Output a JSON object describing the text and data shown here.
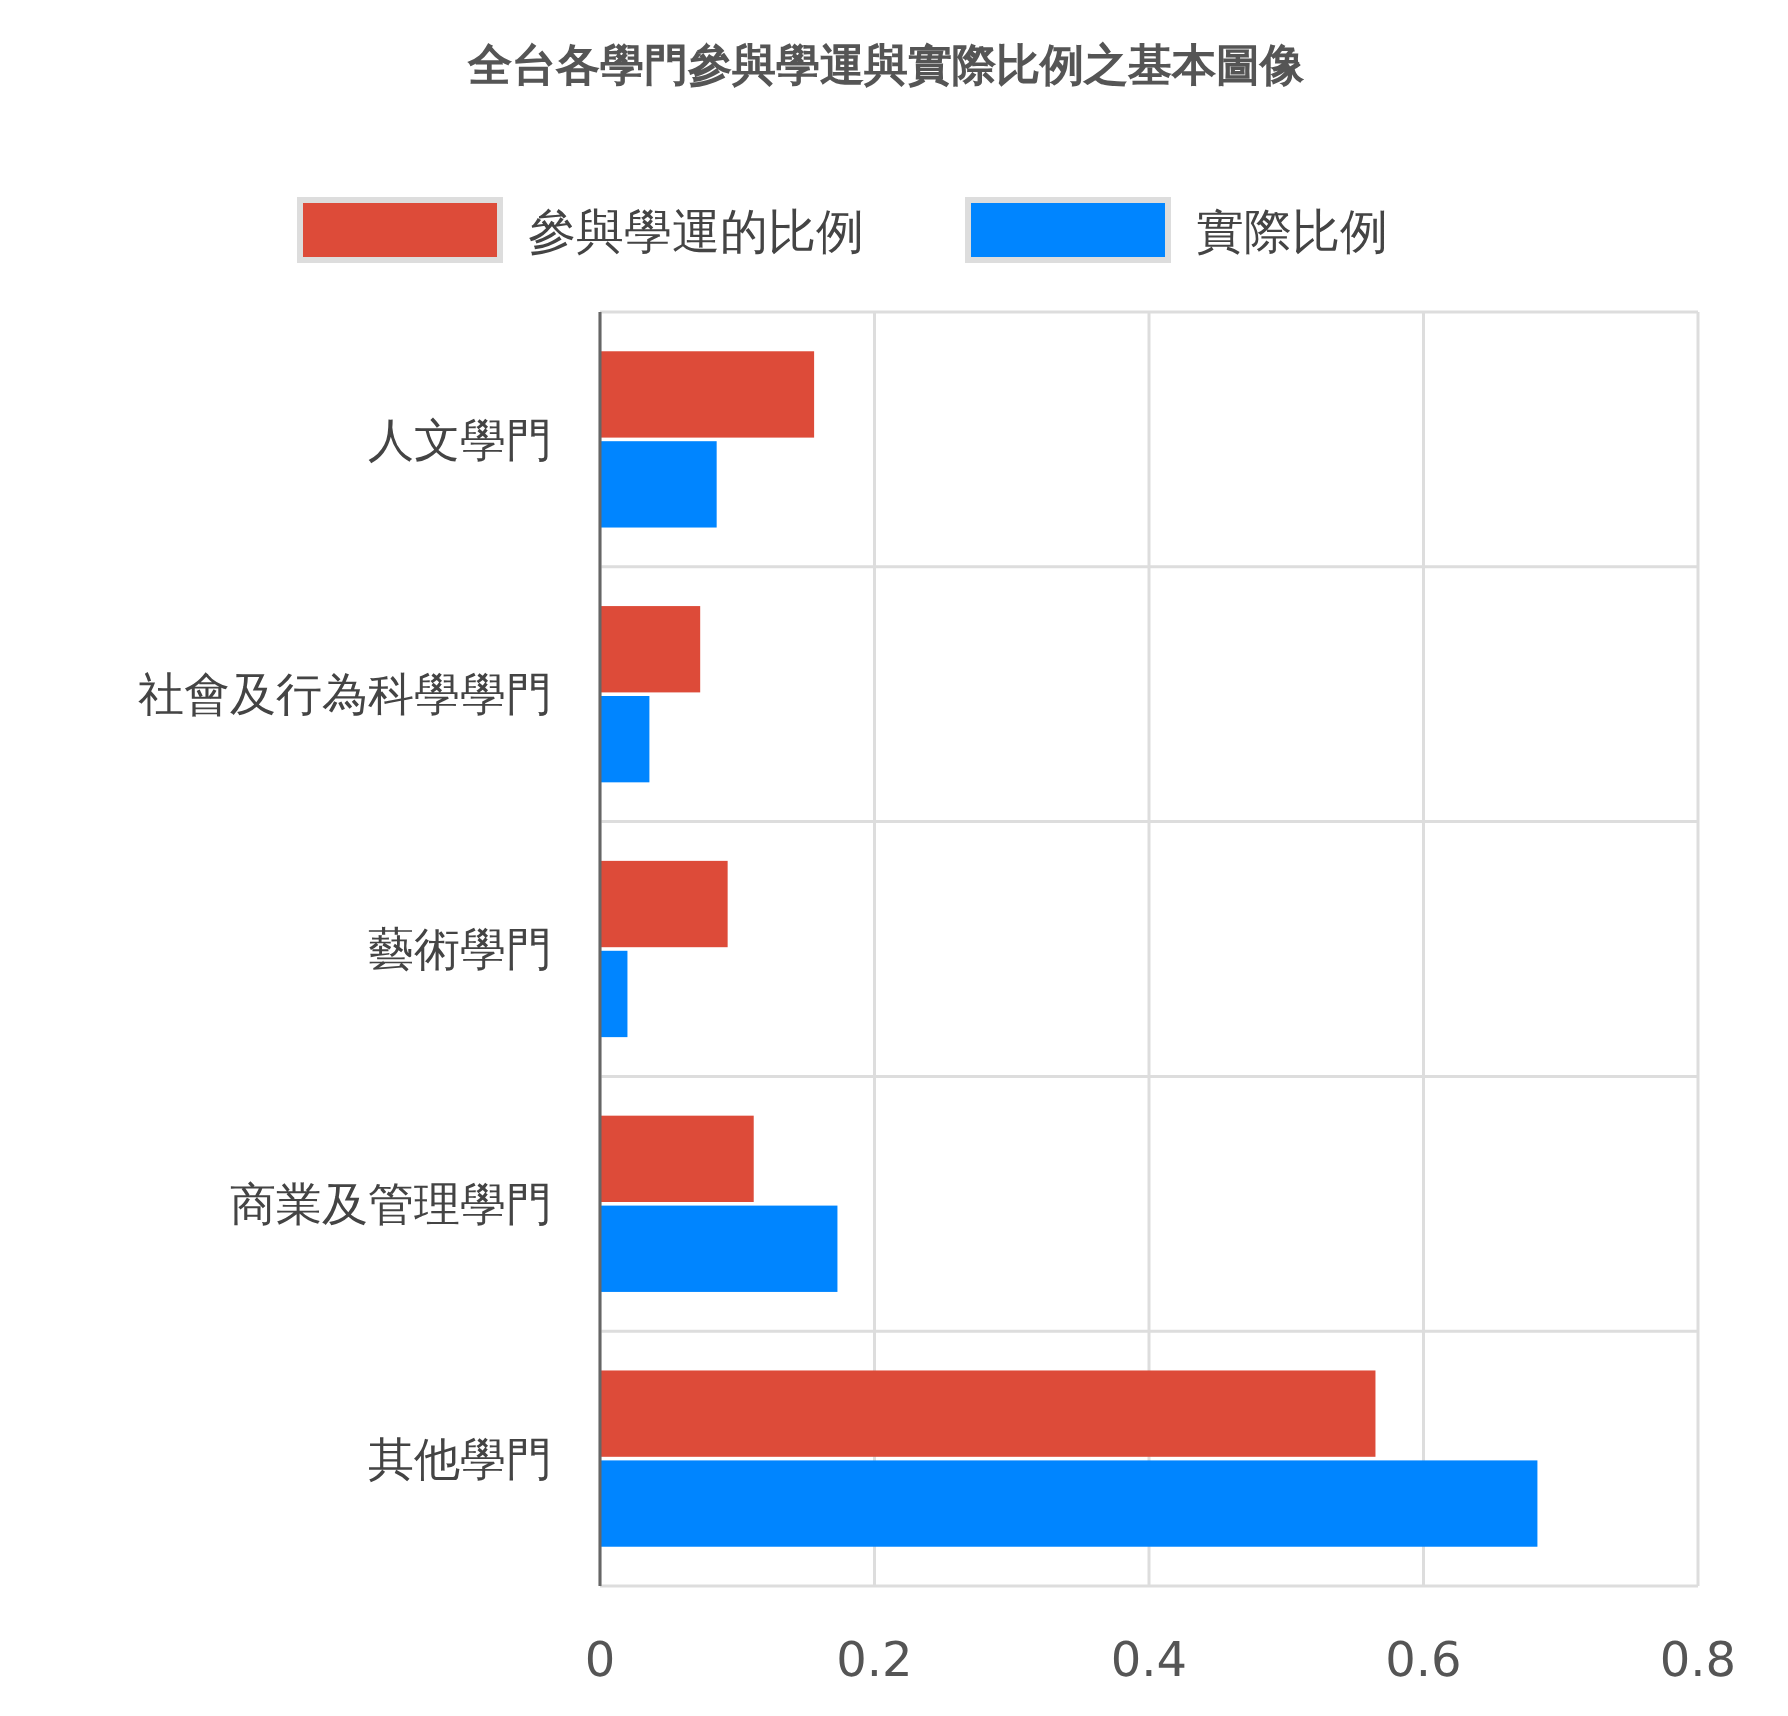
{
  "chart_data": {
    "type": "bar",
    "orientation": "horizontal",
    "title": "全台各學門參與學運與實際比例之基本圖像",
    "categories": [
      "人文學門",
      "社會及行為科學學門",
      "藝術學門",
      "商業及管理學門",
      "其他學門"
    ],
    "series": [
      {
        "name": "參與學運的比例",
        "color": "#dd4b39",
        "values": [
          0.156,
          0.073,
          0.093,
          0.112,
          0.565
        ]
      },
      {
        "name": "實際比例",
        "color": "#0085ff",
        "values": [
          0.085,
          0.036,
          0.02,
          0.173,
          0.683
        ]
      }
    ],
    "xlim": [
      0,
      0.8
    ],
    "xticks": [
      {
        "value": 0,
        "label": "0"
      },
      0.2,
      0.4,
      0.6,
      0.8
    ],
    "grid": true,
    "legend": "top"
  }
}
